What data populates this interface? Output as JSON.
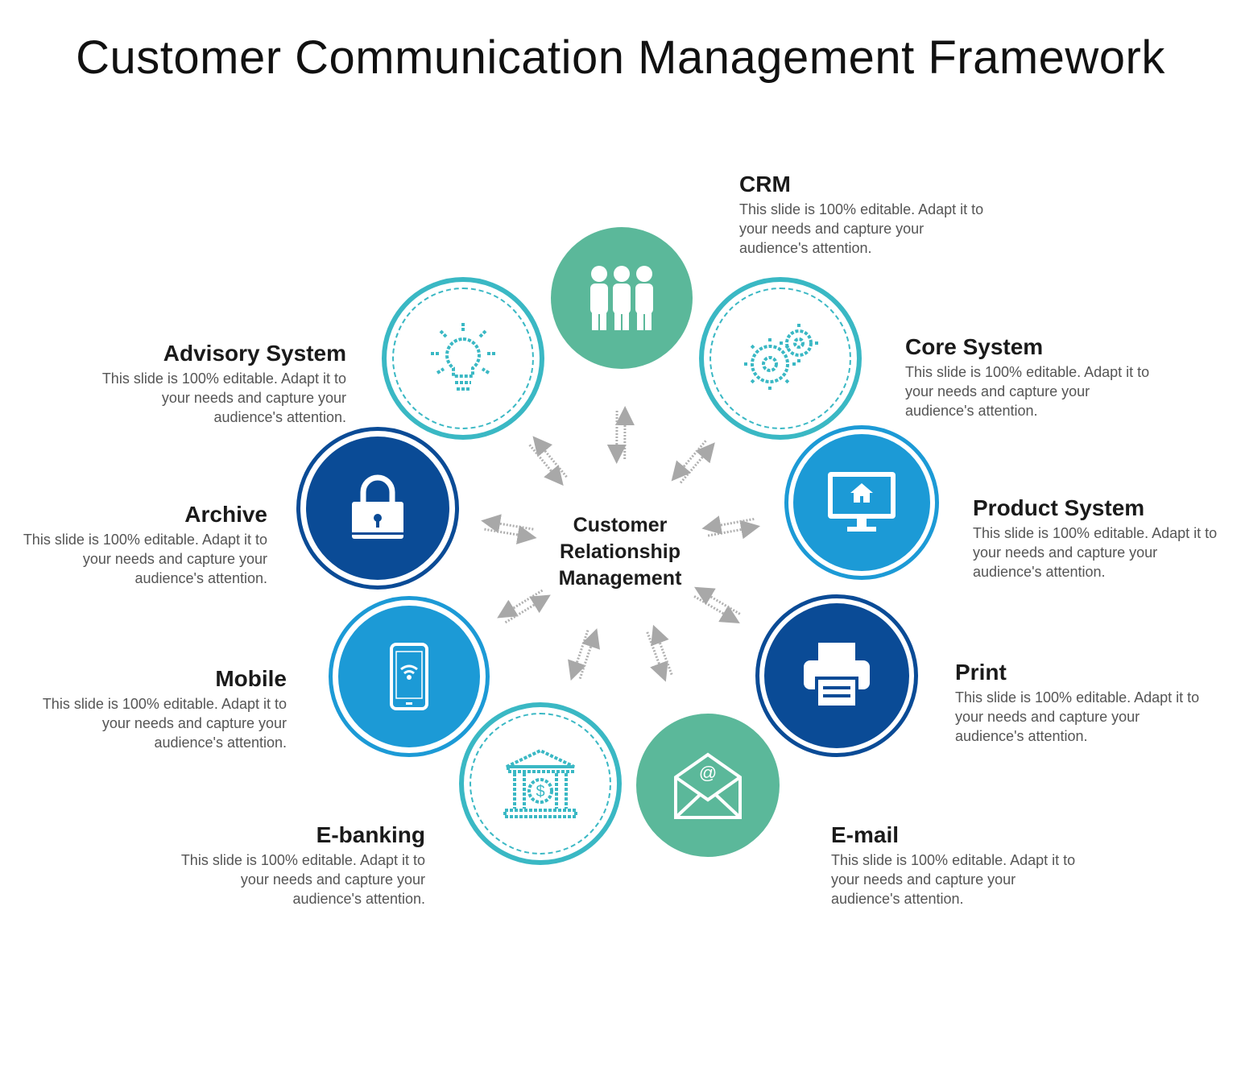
{
  "title": "Customer Communication Management Framework",
  "center": {
    "line1": "Customer",
    "line2": "Relationship",
    "line3": "Management"
  },
  "nodes": [
    {
      "name": "CRM",
      "description": "This slide is 100% editable. Adapt it to your needs and capture your audience's attention.",
      "icon": "people-icon",
      "color": "#5bb89a"
    },
    {
      "name": "Core System",
      "description": "This slide is 100% editable. Adapt it to your needs and capture your audience's attention.",
      "icon": "gears-icon",
      "color": "#3ab8c4"
    },
    {
      "name": "Product System",
      "description": "This slide is 100% editable. Adapt it to your needs and capture your audience's attention.",
      "icon": "monitor-home-icon",
      "color": "#1c9ad6"
    },
    {
      "name": "Print",
      "description": "This slide is 100% editable. Adapt it to your needs and capture your audience's attention.",
      "icon": "printer-icon",
      "color": "#0a4b96"
    },
    {
      "name": "E-mail",
      "description": "This slide is 100% editable. Adapt it to your needs and capture your audience's attention.",
      "icon": "envelope-icon",
      "color": "#5bb89a"
    },
    {
      "name": "E-banking",
      "description": "This slide is 100% editable. Adapt it to your needs and capture your audience's attention.",
      "icon": "bank-icon",
      "color": "#3ab8c4"
    },
    {
      "name": "Mobile",
      "description": "This slide is 100% editable. Adapt it to your needs and capture your audience's attention.",
      "icon": "mobile-icon",
      "color": "#1c9ad6"
    },
    {
      "name": "Archive",
      "description": "This slide is 100% editable. Adapt it to your needs and capture your audience's attention.",
      "icon": "lock-icon",
      "color": "#0a4b96"
    },
    {
      "name": "Advisory System",
      "description": "This slide is 100% editable. Adapt it to your needs and capture your audience's attention.",
      "icon": "lightbulb-icon",
      "color": "#3ab8c4"
    }
  ]
}
